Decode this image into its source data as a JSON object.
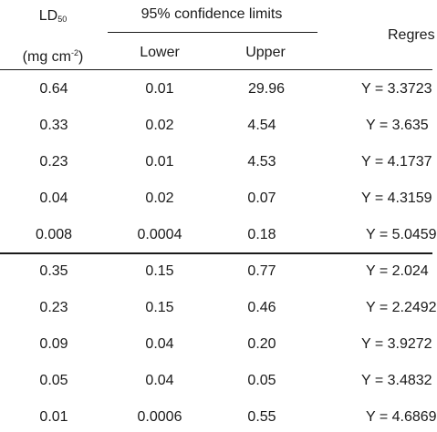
{
  "header": {
    "ld_main": "LD",
    "ld_sub": "50",
    "units_pre": "(mg cm",
    "units_sup": "-2",
    "units_post": ")",
    "conf_label": "95% confidence limits",
    "lower_label": "Lower",
    "upper_label": "Upper",
    "regression_label": "Regres"
  },
  "group1": [
    {
      "ld50": "0.64",
      "lower": "0.01",
      "upper": "29.96",
      "eq": "Y = 3.3723"
    },
    {
      "ld50": "0.33",
      "lower": "0.02",
      "upper": "4.54",
      "eq": "Y = 3.635"
    },
    {
      "ld50": "0.23",
      "lower": "0.01",
      "upper": "4.53",
      "eq": "Y = 4.1737"
    },
    {
      "ld50": "0.04",
      "lower": "0.02",
      "upper": "0.07",
      "eq": "Y = 4.3159"
    },
    {
      "ld50": "0.008",
      "lower": "0.0004",
      "upper": "0.18",
      "eq": "Y = 5.0459"
    }
  ],
  "group2": [
    {
      "ld50": "0.35",
      "lower": "0.15",
      "upper": "0.77",
      "eq": "Y = 2.024"
    },
    {
      "ld50": "0.23",
      "lower": "0.15",
      "upper": "0.46",
      "eq": "Y = 2.2492"
    },
    {
      "ld50": "0.09",
      "lower": "0.04",
      "upper": "0.20",
      "eq": "Y = 3.9272"
    },
    {
      "ld50": "0.05",
      "lower": "0.04",
      "upper": "0.05",
      "eq": "Y = 3.4832"
    },
    {
      "ld50": "0.01",
      "lower": "0.0006",
      "upper": "0.55",
      "eq": "Y = 4.6869"
    }
  ]
}
